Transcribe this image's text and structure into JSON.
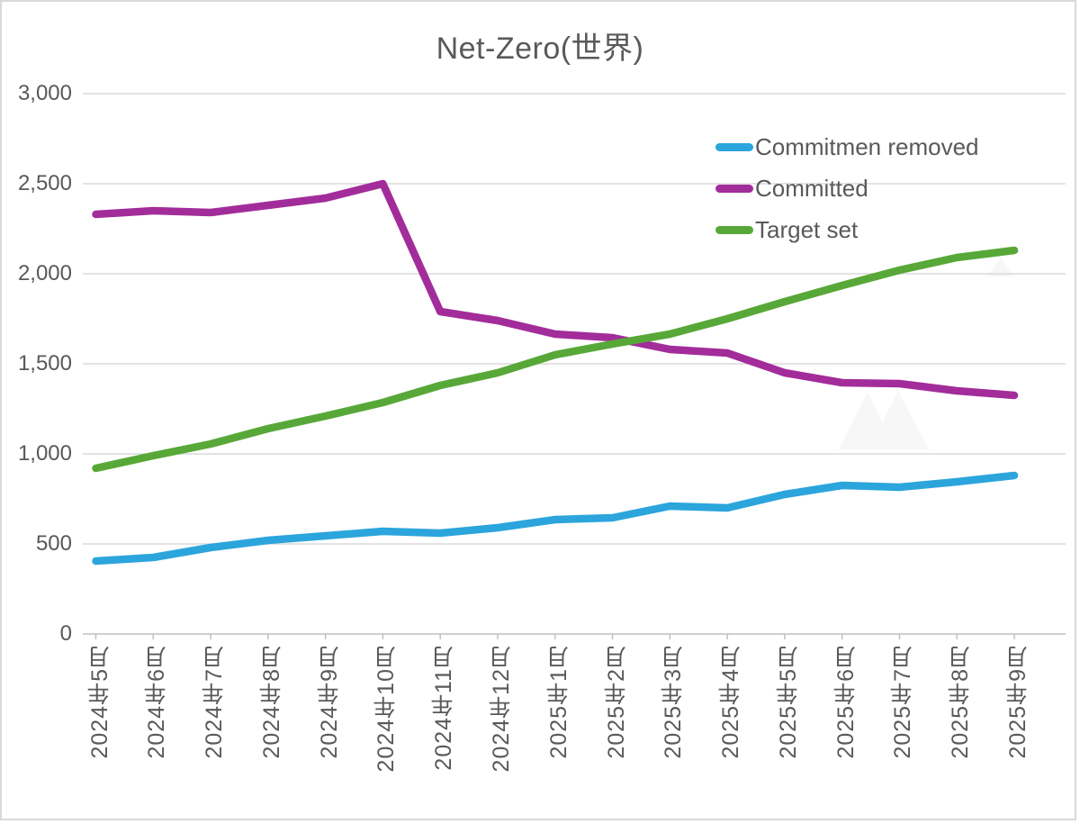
{
  "window": {
    "background": "#FFFFFF",
    "border_color": "#D9D9D9"
  },
  "chart_data": {
    "type": "line",
    "title": "Net-Zero(世界)",
    "title_color": "#595959",
    "text_color": "#595959",
    "gridline_color": "#DADADA",
    "axis_color": "#BFBFBF",
    "grid": "horizontal-on",
    "legend_position": "inside-top-right",
    "xlabel": "",
    "ylabel": "",
    "ylim": [
      0,
      3000
    ],
    "yticks": [
      {
        "label": "3,000",
        "value": 3000
      },
      {
        "label": "2,500",
        "value": 2500
      },
      {
        "label": "2,000",
        "value": 2000
      },
      {
        "label": "1,500",
        "value": 1500
      },
      {
        "label": "1,000",
        "value": 1000
      },
      {
        "label": "500",
        "value": 500
      },
      {
        "label": "0",
        "value": 0
      }
    ],
    "categories": [
      "2024年5月",
      "2024年6月",
      "2024年7月",
      "2024年8月",
      "2024年9月",
      "2024年10月",
      "2024年11月",
      "2024年12月",
      "2025年1月",
      "2025年2月",
      "2025年3月",
      "2025年4月",
      "2025年5月",
      "2025年6月",
      "2025年7月",
      "2025年8月",
      "2025年9月"
    ],
    "series": [
      {
        "name": "Commitmen removed",
        "color": "#2BA5DC",
        "values": [
          405,
          425,
          480,
          520,
          545,
          570,
          560,
          590,
          635,
          645,
          710,
          700,
          775,
          825,
          815,
          845,
          880
        ]
      },
      {
        "name": "Committed",
        "color": "#A32C9B",
        "values": [
          2330,
          2350,
          2340,
          2380,
          2420,
          2500,
          1790,
          1740,
          1665,
          1645,
          1580,
          1560,
          1450,
          1395,
          1390,
          1350,
          1325
        ]
      },
      {
        "name": "Target set",
        "color": "#57A838",
        "values": [
          920,
          990,
          1055,
          1140,
          1210,
          1285,
          1380,
          1450,
          1550,
          1610,
          1665,
          1750,
          1845,
          1935,
          2020,
          2090,
          2130
        ]
      }
    ]
  },
  "watermark": {
    "icon": "mountains-image-placeholder-icon",
    "color": "#F7F7F8"
  }
}
